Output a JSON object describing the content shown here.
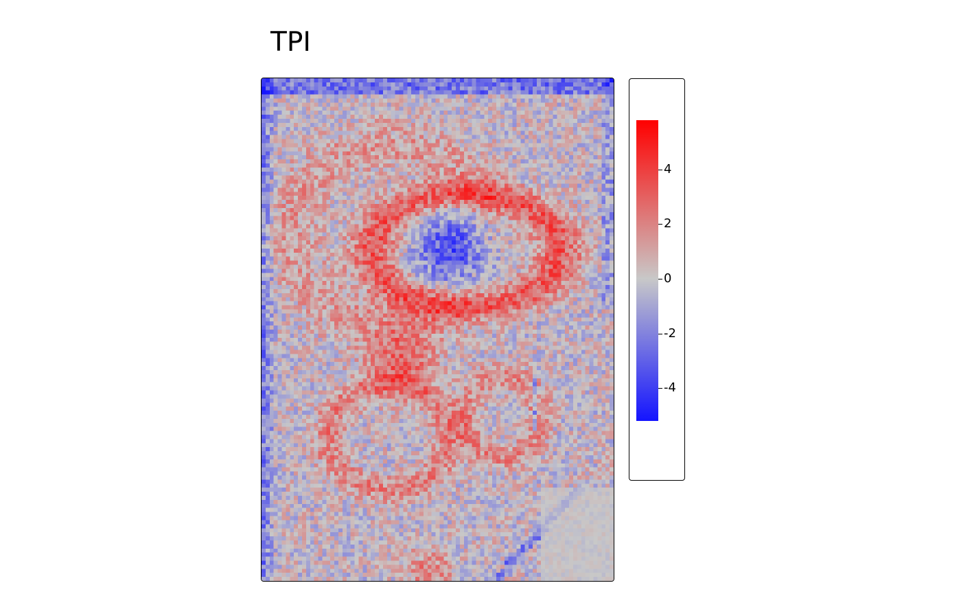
{
  "chart_data": {
    "type": "heatmap",
    "title": "TPI",
    "variable": "TPI",
    "value_range": [
      -5.2,
      5.8
    ],
    "colormap": {
      "low": "#1414ff",
      "mid": "#c8c8c8",
      "high": "#ff0000"
    },
    "legend": {
      "placement": "right",
      "ticks": [
        4,
        2,
        0,
        -2,
        -4
      ],
      "tick_labels": [
        "4",
        "2",
        "0",
        "-2",
        "-4"
      ]
    },
    "raster_grid": {
      "cols": 87,
      "rows": 124
    }
  }
}
